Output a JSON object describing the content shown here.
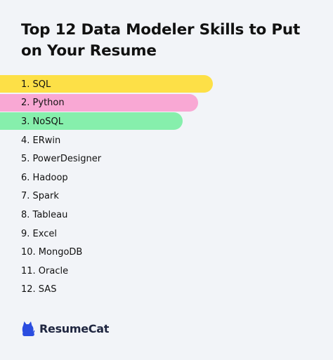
{
  "title": "Top 12 Data Modeler Skills to Put on Your Resume",
  "skills": [
    {
      "label": "1. SQL",
      "bar_color": "#fde047"
    },
    {
      "label": "2. Python",
      "bar_color": "#f9a8d4"
    },
    {
      "label": "3. NoSQL",
      "bar_color": "#86efac"
    },
    {
      "label": "4. ERwin"
    },
    {
      "label": "5. PowerDesigner"
    },
    {
      "label": "6. Hadoop"
    },
    {
      "label": "7. Spark"
    },
    {
      "label": "8. Tableau"
    },
    {
      "label": "9. Excel"
    },
    {
      "label": "10. MongoDB"
    },
    {
      "label": "11. Oracle"
    },
    {
      "label": "12. SAS"
    }
  ],
  "brand": {
    "name": "ResumeCat",
    "icon": "cat-icon",
    "color": "#2b4de0"
  },
  "colors": {
    "background": "#f2f4f8",
    "text": "#111111"
  }
}
